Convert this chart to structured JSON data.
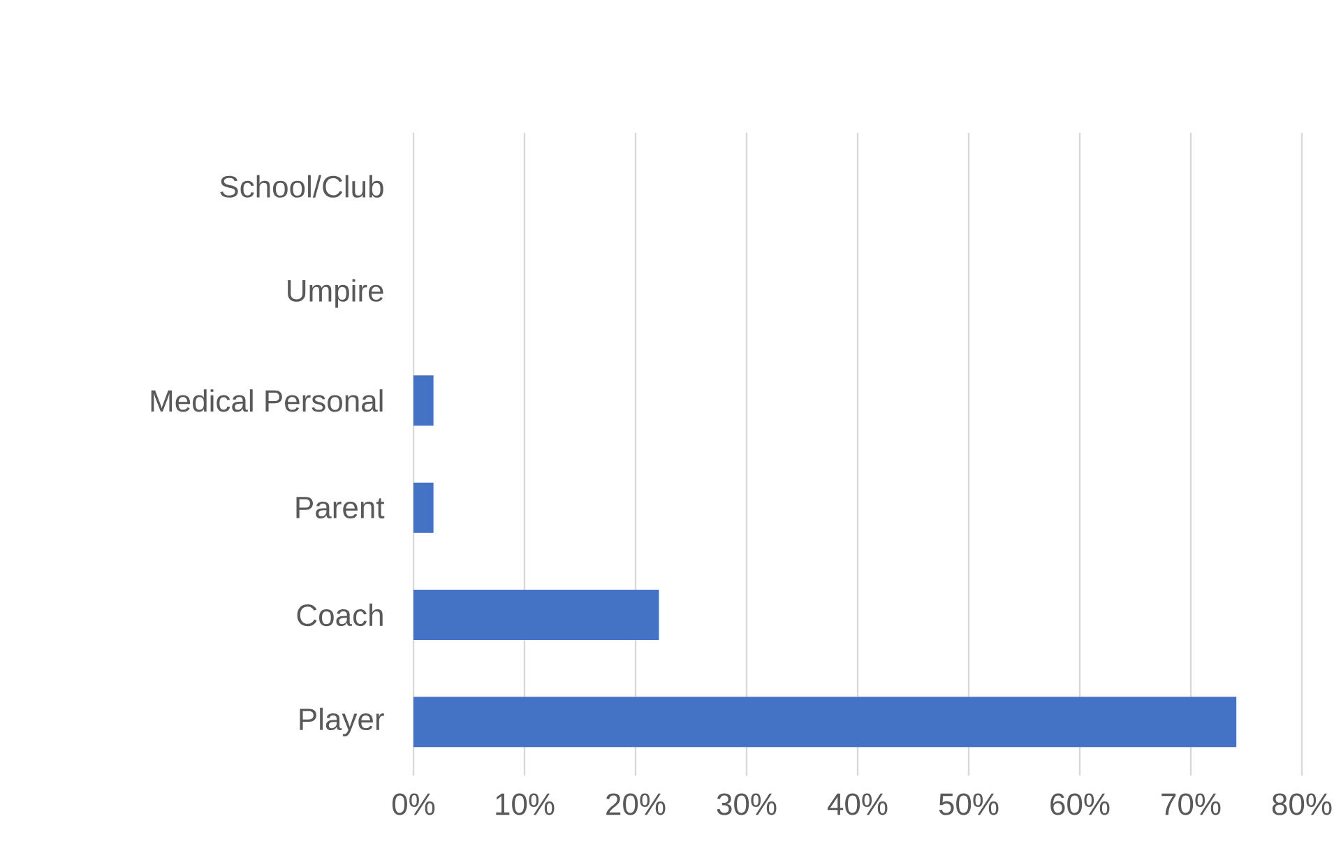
{
  "chart_data": {
    "type": "bar",
    "orientation": "horizontal",
    "categories": [
      "School/Club",
      "Umpire",
      "Medical Personal",
      "Parent",
      "Coach",
      "Player"
    ],
    "values": [
      0,
      0,
      1.8,
      1.8,
      22.1,
      74.1
    ],
    "color": "#4472c4",
    "xlim": [
      0,
      80
    ],
    "xticks": [
      {
        "value": 0,
        "label": "0%"
      },
      {
        "value": 10,
        "label": "10%"
      },
      {
        "value": 20,
        "label": "20%"
      },
      {
        "value": 30,
        "label": "30%"
      },
      {
        "value": 40,
        "label": "40%"
      },
      {
        "value": 50,
        "label": "50%"
      },
      {
        "value": 60,
        "label": "60%"
      },
      {
        "value": 70,
        "label": "70%"
      },
      {
        "value": 80,
        "label": "80%"
      }
    ],
    "grid": "x"
  }
}
